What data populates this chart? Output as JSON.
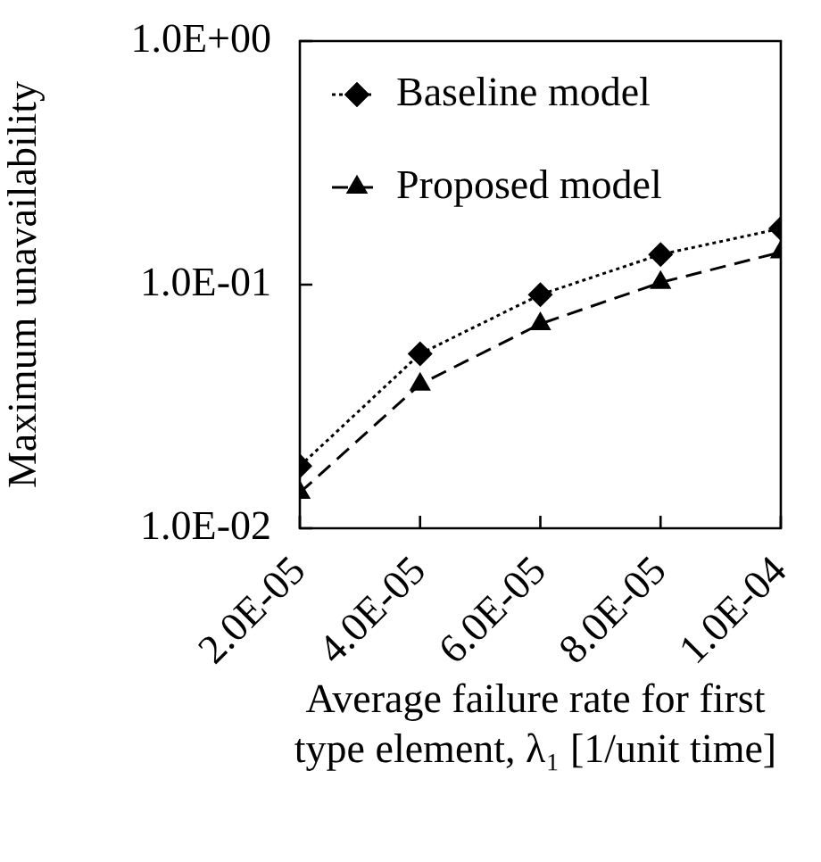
{
  "chart_data": {
    "type": "line",
    "xlabel": "Average failure rate for first type element, λ₁ [1/unit time]",
    "ylabel": "Maximum unavailability",
    "x": [
      2e-05,
      4e-05,
      6e-05,
      8e-05,
      0.0001
    ],
    "series": [
      {
        "name": "Baseline model",
        "color": "#000000",
        "marker": "diamond",
        "line_style": "dotted",
        "values": [
          0.018,
          0.052,
          0.091,
          0.133,
          0.17
        ]
      },
      {
        "name": "Proposed model",
        "color": "#000000",
        "marker": "triangle",
        "line_style": "dashed",
        "values": [
          0.014,
          0.039,
          0.069,
          0.102,
          0.136
        ]
      }
    ],
    "xlim": [
      2e-05,
      0.0001
    ],
    "xticks": [
      {
        "value": 2e-05,
        "label": "2.0E-05"
      },
      {
        "value": 4e-05,
        "label": "4.0E-05"
      },
      {
        "value": 6e-05,
        "label": "6.0E-05"
      },
      {
        "value": 8e-05,
        "label": "8.0E-05"
      },
      {
        "value": 0.0001,
        "label": "1.0E-04"
      }
    ],
    "ylim": [
      0.01,
      1
    ],
    "yticks": [
      {
        "value": 0.01,
        "label": "1.0E-02"
      },
      {
        "value": 0.1,
        "label": "1.0E-01"
      },
      {
        "value": 1,
        "label": "1.0E+00"
      }
    ],
    "log": "y",
    "grid": false,
    "legend": "top left"
  }
}
